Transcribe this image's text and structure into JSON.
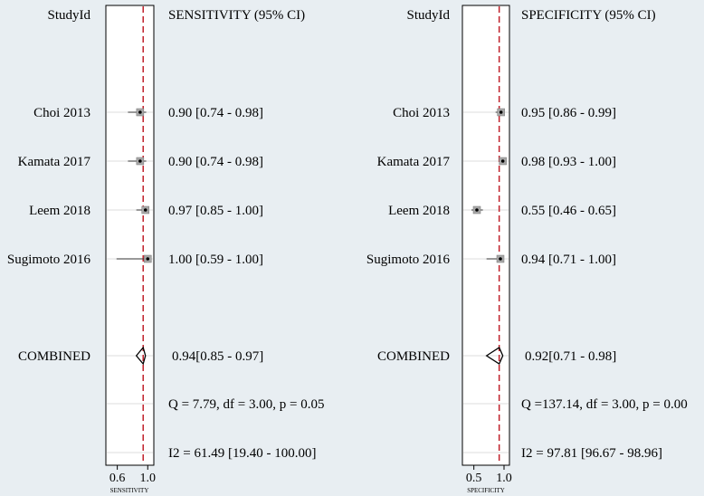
{
  "chart_data": [
    {
      "type": "forest",
      "id_header": "StudyId",
      "value_header": "SENSITIVITY (95% CI)",
      "xlabel": "SENSITIVITY",
      "xticks": [
        "0.6",
        "1.0"
      ],
      "xlim": [
        0.45,
        1.08
      ],
      "reference_line": 0.94,
      "studies": [
        {
          "name": "Choi 2013",
          "estimate": 0.9,
          "lower": 0.74,
          "upper": 0.98,
          "label": "0.90 [0.74 - 0.98]"
        },
        {
          "name": "Kamata 2017",
          "estimate": 0.9,
          "lower": 0.74,
          "upper": 0.98,
          "label": "0.90 [0.74 - 0.98]"
        },
        {
          "name": "Leem 2018",
          "estimate": 0.97,
          "lower": 0.85,
          "upper": 1.0,
          "label": "0.97 [0.85 - 1.00]"
        },
        {
          "name": "Sugimoto 2016",
          "estimate": 1.0,
          "lower": 0.59,
          "upper": 1.0,
          "label": "1.00 [0.59 - 1.00]"
        }
      ],
      "combined": {
        "name": "COMBINED",
        "estimate": 0.94,
        "lower": 0.85,
        "upper": 0.97,
        "label": "0.94[0.85 - 0.97]"
      },
      "heterogeneity_q": "Q =  7.79, df = 3.00, p =  0.05",
      "heterogeneity_i2": "I2 = 61.49 [19.40 - 100.00]"
    },
    {
      "type": "forest",
      "id_header": "StudyId",
      "value_header": "SPECIFICITY (95% CI)",
      "xlabel": "SPECIFICITY",
      "xticks": [
        "0.5",
        "1.0"
      ],
      "xlim": [
        0.31,
        1.09
      ],
      "reference_line": 0.92,
      "studies": [
        {
          "name": "Choi 2013",
          "estimate": 0.95,
          "lower": 0.86,
          "upper": 0.99,
          "label": "0.95 [0.86 - 0.99]"
        },
        {
          "name": "Kamata 2017",
          "estimate": 0.98,
          "lower": 0.93,
          "upper": 1.0,
          "label": "0.98 [0.93 - 1.00]"
        },
        {
          "name": "Leem 2018",
          "estimate": 0.55,
          "lower": 0.46,
          "upper": 0.65,
          "label": "0.55 [0.46 - 0.65]"
        },
        {
          "name": "Sugimoto 2016",
          "estimate": 0.94,
          "lower": 0.71,
          "upper": 1.0,
          "label": "0.94 [0.71 - 1.00]"
        }
      ],
      "combined": {
        "name": "COMBINED",
        "estimate": 0.92,
        "lower": 0.71,
        "upper": 0.98,
        "label": "0.92[0.71 - 0.98]"
      },
      "heterogeneity_q": "Q =137.14, df = 3.00, p =  0.00",
      "heterogeneity_i2": "I2 = 97.81 [96.67 - 98.96]"
    }
  ]
}
